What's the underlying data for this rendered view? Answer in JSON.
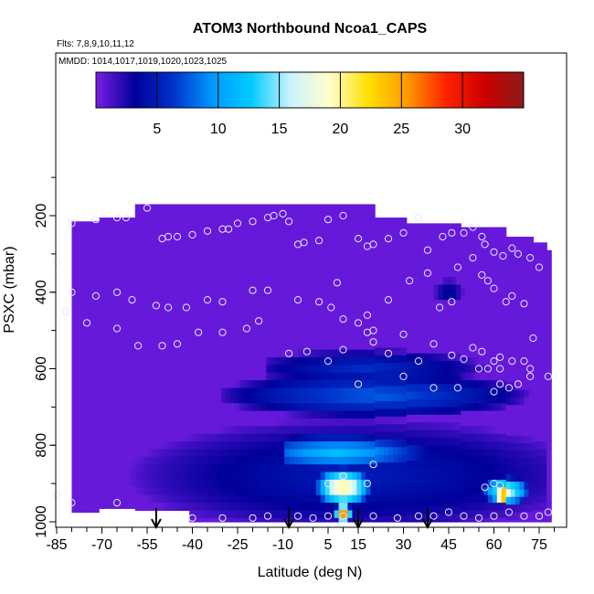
{
  "chart_data": {
    "type": "heatmap",
    "title": "ATOM3 Northbound Ncoa1_CAPS",
    "flights_note": "Flts: 7,8,9,10,11,12",
    "dates_note": "MMDD: 1014,1017,1019,1020,1023,1025",
    "xlabel": "Latitude (deg N)",
    "ylabel": "PSXC (mbar)",
    "xlim": [
      -85,
      85
    ],
    "ylim": [
      1000,
      100
    ],
    "x_ticks": [
      "-85",
      "-70",
      "-55",
      "-40",
      "-25",
      "-10",
      "5",
      "15",
      "30",
      "45",
      "60",
      "75"
    ],
    "x_tick_values": [
      -85,
      -70,
      -55,
      -40,
      -25,
      -10,
      5,
      15,
      30,
      45,
      60,
      75
    ],
    "y_ticks": [
      "200",
      "400",
      "600",
      "800",
      "1000"
    ],
    "y_tick_values": [
      200,
      400,
      600,
      800,
      1000
    ],
    "colorbar": {
      "range": [
        0,
        35
      ],
      "tick_labels": [
        "5",
        "10",
        "15",
        "20",
        "25",
        "30"
      ],
      "tick_values": [
        5,
        10,
        15,
        20,
        25,
        30
      ],
      "colors": [
        "#7a1ee6",
        "#000099",
        "#0033cc",
        "#0099ff",
        "#00ccff",
        "#ccf2ff",
        "#ffffcc",
        "#ffe000",
        "#ff9900",
        "#ff2200",
        "#cc0000",
        "#8b1a1a"
      ]
    },
    "background_value": 0.5,
    "top_boundary": [
      [
        -80,
        215
      ],
      [
        -74,
        215
      ],
      [
        -72,
        205
      ],
      [
        -60,
        205
      ],
      [
        -60,
        170
      ],
      [
        20,
        170
      ],
      [
        20,
        205
      ],
      [
        30,
        205
      ],
      [
        30,
        220
      ],
      [
        45,
        220
      ],
      [
        48,
        230
      ],
      [
        63,
        230
      ],
      [
        63,
        255
      ],
      [
        70,
        255
      ],
      [
        73,
        270
      ],
      [
        77,
        270
      ],
      [
        77,
        290
      ],
      [
        78,
        290
      ],
      [
        78,
        330
      ]
    ],
    "features": [
      {
        "lat_min": -15,
        "lat_max": 65,
        "p_min": 520,
        "p_max": 620,
        "lat_center": 18,
        "p_center": 600,
        "value": 6
      },
      {
        "lat_min": -30,
        "lat_max": 75,
        "p_min": 600,
        "p_max": 720,
        "lat_center": 20,
        "p_center": 670,
        "value": 8
      },
      {
        "lat_min": -75,
        "lat_max": 78,
        "p_min": 700,
        "p_max": 1000,
        "lat_center": 15,
        "p_center": 880,
        "value": 5
      },
      {
        "lat_min": -10,
        "lat_max": 58,
        "p_min": 760,
        "p_max": 860,
        "lat_center": 8,
        "p_center": 820,
        "value": 12
      },
      {
        "lat_min": 0,
        "lat_max": 20,
        "p_min": 850,
        "p_max": 960,
        "lat_center": 10,
        "p_center": 910,
        "value": 22
      },
      {
        "lat_min": 7,
        "lat_max": 13,
        "p_min": 940,
        "p_max": 1000,
        "lat_center": 10,
        "p_center": 980,
        "value": 30
      },
      {
        "lat_min": 55,
        "lat_max": 72,
        "p_min": 880,
        "p_max": 960,
        "lat_center": 64,
        "p_center": 920,
        "value": 18
      },
      {
        "lat_min": 60,
        "lat_max": 66,
        "p_min": 905,
        "p_max": 955,
        "lat_center": 63,
        "p_center": 930,
        "value": 32
      },
      {
        "lat_min": 40,
        "lat_max": 50,
        "p_min": 350,
        "p_max": 420,
        "lat_center": 45,
        "p_center": 400,
        "value": 4
      }
    ],
    "sample_points": [
      [
        -85,
        320
      ],
      [
        -80,
        220
      ],
      [
        -72,
        210
      ],
      [
        -65,
        205
      ],
      [
        -62,
        205
      ],
      [
        -55,
        180
      ],
      [
        -50,
        260
      ],
      [
        -48,
        255
      ],
      [
        -45,
        255
      ],
      [
        -40,
        250
      ],
      [
        -35,
        240
      ],
      [
        -30,
        235
      ],
      [
        -28,
        235
      ],
      [
        -25,
        220
      ],
      [
        -20,
        215
      ],
      [
        -15,
        205
      ],
      [
        -13,
        200
      ],
      [
        -10,
        195
      ],
      [
        -8,
        215
      ],
      [
        -5,
        275
      ],
      [
        -3,
        270
      ],
      [
        2,
        265
      ],
      [
        5,
        210
      ],
      [
        10,
        200
      ],
      [
        15,
        260
      ],
      [
        18,
        280
      ],
      [
        20,
        275
      ],
      [
        25,
        260
      ],
      [
        30,
        245
      ],
      [
        35,
        205
      ],
      [
        38,
        290
      ],
      [
        43,
        255
      ],
      [
        46,
        245
      ],
      [
        50,
        245
      ],
      [
        53,
        230
      ],
      [
        56,
        255
      ],
      [
        57,
        275
      ],
      [
        60,
        295
      ],
      [
        63,
        305
      ],
      [
        66,
        285
      ],
      [
        68,
        300
      ],
      [
        72,
        310
      ],
      [
        75,
        335
      ],
      [
        -80,
        400
      ],
      [
        -72,
        410
      ],
      [
        -65,
        400
      ],
      [
        -60,
        420
      ],
      [
        -52,
        435
      ],
      [
        -48,
        440
      ],
      [
        -42,
        440
      ],
      [
        -35,
        420
      ],
      [
        -30,
        425
      ],
      [
        -20,
        395
      ],
      [
        -15,
        395
      ],
      [
        -5,
        420
      ],
      [
        2,
        425
      ],
      [
        6,
        440
      ],
      [
        8,
        375
      ],
      [
        10,
        470
      ],
      [
        15,
        480
      ],
      [
        18,
        460
      ],
      [
        20,
        500
      ],
      [
        25,
        420
      ],
      [
        32,
        370
      ],
      [
        38,
        350
      ],
      [
        42,
        440
      ],
      [
        46,
        425
      ],
      [
        48,
        335
      ],
      [
        53,
        310
      ],
      [
        56,
        355
      ],
      [
        58,
        370
      ],
      [
        60,
        390
      ],
      [
        64,
        425
      ],
      [
        66,
        410
      ],
      [
        70,
        430
      ],
      [
        73,
        520
      ],
      [
        -82,
        450
      ],
      [
        -75,
        480
      ],
      [
        -65,
        495
      ],
      [
        -58,
        540
      ],
      [
        -50,
        540
      ],
      [
        -45,
        535
      ],
      [
        -38,
        505
      ],
      [
        -30,
        505
      ],
      [
        -22,
        495
      ],
      [
        -18,
        475
      ],
      [
        -8,
        560
      ],
      [
        -2,
        555
      ],
      [
        5,
        580
      ],
      [
        10,
        550
      ],
      [
        18,
        505
      ],
      [
        20,
        530
      ],
      [
        25,
        560
      ],
      [
        30,
        510
      ],
      [
        35,
        580
      ],
      [
        40,
        535
      ],
      [
        46,
        565
      ],
      [
        50,
        575
      ],
      [
        53,
        545
      ],
      [
        56,
        555
      ],
      [
        58,
        600
      ],
      [
        60,
        580
      ],
      [
        62,
        570
      ],
      [
        66,
        580
      ],
      [
        70,
        580
      ],
      [
        72,
        600
      ],
      [
        -85,
        930
      ],
      [
        -80,
        950
      ],
      [
        -65,
        950
      ],
      [
        -40,
        990
      ],
      [
        -30,
        990
      ],
      [
        -20,
        990
      ],
      [
        -15,
        985
      ],
      [
        -5,
        985
      ],
      [
        0,
        990
      ],
      [
        5,
        985
      ],
      [
        10,
        985
      ],
      [
        20,
        985
      ],
      [
        28,
        990
      ],
      [
        35,
        985
      ],
      [
        40,
        985
      ],
      [
        45,
        975
      ],
      [
        50,
        985
      ],
      [
        55,
        990
      ],
      [
        60,
        985
      ],
      [
        65,
        975
      ],
      [
        70,
        985
      ],
      [
        75,
        985
      ],
      [
        78,
        975
      ],
      [
        60,
        900
      ],
      [
        62,
        905
      ],
      [
        57,
        910
      ],
      [
        60,
        660
      ],
      [
        62,
        640
      ],
      [
        65,
        650
      ],
      [
        68,
        640
      ],
      [
        72,
        620
      ],
      [
        78,
        620
      ],
      [
        15,
        640
      ],
      [
        30,
        620
      ],
      [
        40,
        650
      ],
      [
        48,
        650
      ],
      [
        55,
        600
      ],
      [
        62,
        600
      ],
      [
        20,
        850
      ],
      [
        10,
        880
      ],
      [
        5,
        900
      ],
      [
        18,
        900
      ]
    ],
    "arrows_lat": [
      -52,
      -8,
      15,
      38
    ]
  }
}
